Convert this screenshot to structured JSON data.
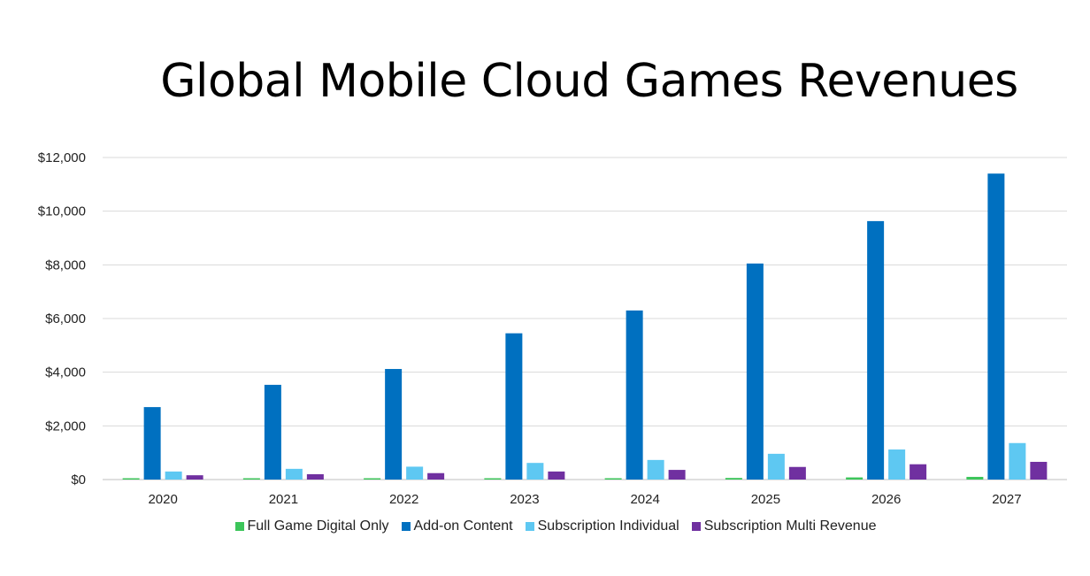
{
  "chart_data": {
    "type": "bar",
    "title": "Global Mobile Cloud Games Revenues",
    "categories": [
      "2020",
      "2021",
      "2022",
      "2023",
      "2024",
      "2025",
      "2026",
      "2027"
    ],
    "series": [
      {
        "name": "Full Game Digital Only",
        "color": "#3CC55A",
        "values": [
          20,
          25,
          30,
          40,
          50,
          60,
          80,
          100
        ]
      },
      {
        "name": "Add-on Content",
        "color": "#0070C0",
        "values": [
          2700,
          3530,
          4120,
          5450,
          6300,
          8050,
          9630,
          11400
        ]
      },
      {
        "name": "Subscription Individual",
        "color": "#5EC8F2",
        "values": [
          300,
          400,
          480,
          620,
          730,
          960,
          1120,
          1360
        ]
      },
      {
        "name": "Subscription Multi Revenue",
        "color": "#7030A0",
        "values": [
          160,
          200,
          240,
          300,
          360,
          470,
          570,
          660
        ]
      }
    ],
    "y_ticks": [
      "$0",
      "$2,000",
      "$4,000",
      "$6,000",
      "$8,000",
      "$10,000",
      "$12,000"
    ],
    "ylim": [
      0,
      12000
    ],
    "y_step": 2000,
    "grid": true,
    "legend_position": "bottom"
  }
}
